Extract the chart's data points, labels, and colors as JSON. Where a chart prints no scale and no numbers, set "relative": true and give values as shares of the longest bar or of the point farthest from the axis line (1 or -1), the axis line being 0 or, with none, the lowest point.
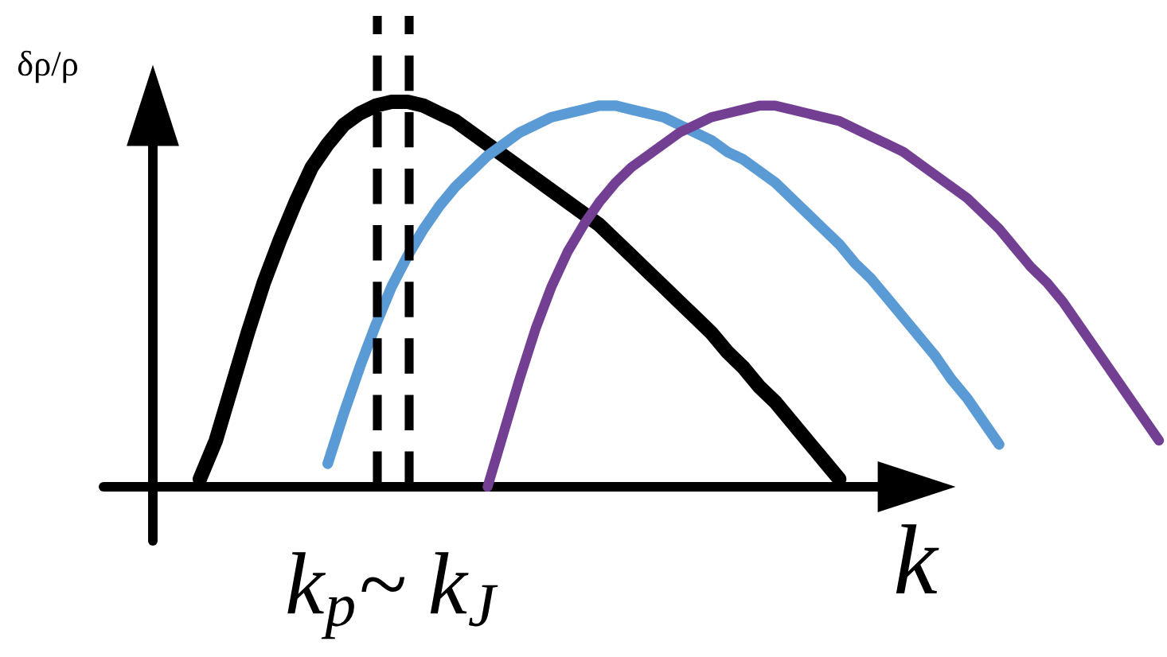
{
  "chart_data": {
    "type": "line",
    "relative": true,
    "xlabel": "k",
    "ylabel": "δρ/ρ",
    "marker": "none",
    "line_style": "solid",
    "annotations": [
      "k$_{p}$~ k$_{J}$"
    ],
    "categories": [
      null,
      null,
      null,
      null,
      null,
      null,
      null,
      null,
      null,
      null,
      null,
      null,
      null,
      null,
      null,
      null,
      null,
      null,
      null,
      null,
      null,
      null,
      null,
      null,
      null,
      null,
      null,
      null,
      null,
      null,
      null,
      null,
      null,
      null,
      null,
      null,
      null,
      null,
      null,
      null,
      null,
      null,
      null,
      null,
      null,
      null,
      null,
      null,
      null,
      null,
      null,
      null,
      null,
      null,
      null,
      null,
      null,
      null,
      null,
      null,
      null,
      null,
      null,
      null,
      null,
      null,
      null,
      null,
      null,
      null,
      null,
      null,
      null
    ],
    "series": [
      {
        "color": "#000000",
        "values": [
          null,
          null,
          null,
          null,
          null,
          null,
          null,
          null,
          null,
          null,
          null,
          null,
          0.02,
          0.12,
          0.26,
          0.4,
          0.53,
          0.64,
          0.74,
          0.83,
          0.89,
          0.94,
          0.97,
          0.99,
          1.0,
          1.0,
          0.99,
          0.97,
          0.95,
          0.92,
          0.89,
          0.86,
          0.83,
          0.8,
          0.77,
          0.74,
          0.71,
          0.68,
          0.64,
          0.6,
          0.56,
          0.52,
          0.48,
          0.44,
          0.4,
          0.35,
          0.31,
          0.26,
          0.22,
          0.17,
          0.12,
          0.07,
          0.02,
          null,
          null,
          null,
          null,
          null,
          null,
          null,
          null,
          null,
          null,
          null,
          null,
          null,
          null,
          null,
          null,
          null,
          null,
          null,
          null
        ]
      },
      {
        "color": "#5b9bd5",
        "values": [
          null,
          null,
          null,
          null,
          null,
          null,
          null,
          null,
          null,
          null,
          null,
          null,
          null,
          null,
          null,
          null,
          null,
          null,
          null,
          null,
          0.06,
          0.19,
          0.31,
          0.42,
          0.52,
          0.6,
          0.67,
          0.73,
          0.78,
          0.82,
          0.86,
          0.89,
          0.92,
          0.94,
          0.96,
          0.97,
          0.98,
          0.99,
          0.99,
          0.98,
          0.97,
          0.96,
          0.94,
          0.92,
          0.9,
          0.87,
          0.85,
          0.82,
          0.79,
          0.75,
          0.71,
          0.67,
          0.63,
          0.58,
          0.54,
          0.49,
          0.44,
          0.39,
          0.34,
          0.28,
          0.23,
          0.17,
          0.11,
          null,
          null,
          null,
          null,
          null,
          null,
          null,
          null,
          null,
          null
        ]
      },
      {
        "color": "#733f93",
        "values": [
          null,
          null,
          null,
          null,
          null,
          null,
          null,
          null,
          null,
          null,
          null,
          null,
          null,
          null,
          null,
          null,
          null,
          null,
          null,
          null,
          null,
          null,
          null,
          null,
          null,
          null,
          null,
          null,
          null,
          null,
          0.0,
          0.14,
          0.28,
          0.41,
          0.52,
          0.61,
          0.68,
          0.74,
          0.79,
          0.83,
          0.86,
          0.89,
          0.92,
          0.94,
          0.96,
          0.97,
          0.98,
          0.99,
          0.99,
          0.98,
          0.97,
          0.96,
          0.95,
          0.93,
          0.91,
          0.89,
          0.87,
          0.84,
          0.81,
          0.78,
          0.75,
          0.71,
          0.67,
          0.62,
          0.57,
          0.53,
          0.48,
          0.42,
          0.36,
          0.3,
          0.24,
          0.18,
          0.12
        ]
      }
    ]
  }
}
